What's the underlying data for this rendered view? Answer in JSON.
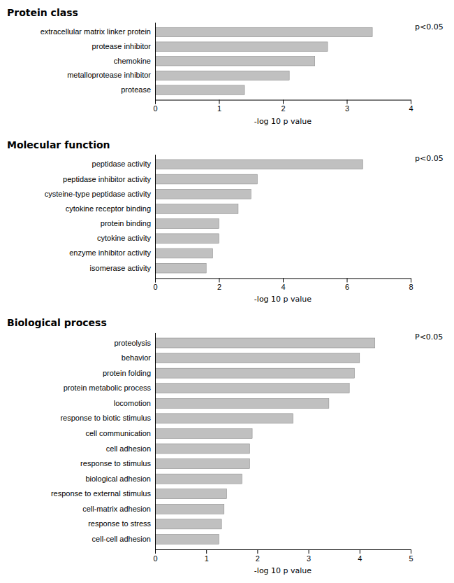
{
  "chart_data": [
    {
      "type": "bar",
      "orientation": "horizontal",
      "title": "Protein class",
      "categories": [
        "extracellular matrix linker protein",
        "protease inhibitor",
        "chemokine",
        "metalloprotease inhibitor",
        "protease"
      ],
      "values": [
        3.4,
        2.7,
        2.5,
        2.1,
        1.4
      ],
      "color": "#c0c0c0",
      "xlabel": "-log 10 p value",
      "xlim": [
        0,
        4
      ],
      "xticks": [
        0,
        1,
        2,
        3,
        4
      ],
      "annotation": "p<0.05"
    },
    {
      "type": "bar",
      "orientation": "horizontal",
      "title": "Molecular function",
      "categories": [
        "peptidase activity",
        "peptidase inhibitor activity",
        "cysteine-type peptidase activity",
        "cytokine receptor binding",
        "protein binding",
        "cytokine activity",
        "enzyme inhibitor activity",
        "isomerase activity"
      ],
      "values": [
        6.5,
        3.2,
        3.0,
        2.6,
        2.0,
        2.0,
        1.8,
        1.6
      ],
      "color": "#c0c0c0",
      "xlabel": "-log 10 p value",
      "xlim": [
        0,
        8
      ],
      "xticks": [
        0,
        2,
        4,
        6,
        8
      ],
      "annotation": "p<0.05"
    },
    {
      "type": "bar",
      "orientation": "horizontal",
      "title": "Biological process",
      "categories": [
        "proteolysis",
        "behavior",
        "protein folding",
        "protein metabolic process",
        "locomotion",
        "response to biotic stimulus",
        "cell communication",
        "cell adhesion",
        "response to stimulus",
        "biological adhesion",
        "response to external stimulus",
        "cell-matrix adhesion",
        "response to stress",
        "cell-cell adhesion"
      ],
      "values": [
        4.3,
        4.0,
        3.9,
        3.8,
        3.4,
        2.7,
        1.9,
        1.85,
        1.85,
        1.7,
        1.4,
        1.35,
        1.3,
        1.25
      ],
      "color": "#c0c0c0",
      "xlabel": "-log 10 p value",
      "xlim": [
        0,
        5
      ],
      "xticks": [
        0,
        1,
        2,
        3,
        4,
        5
      ],
      "annotation": "P<0.05"
    }
  ]
}
